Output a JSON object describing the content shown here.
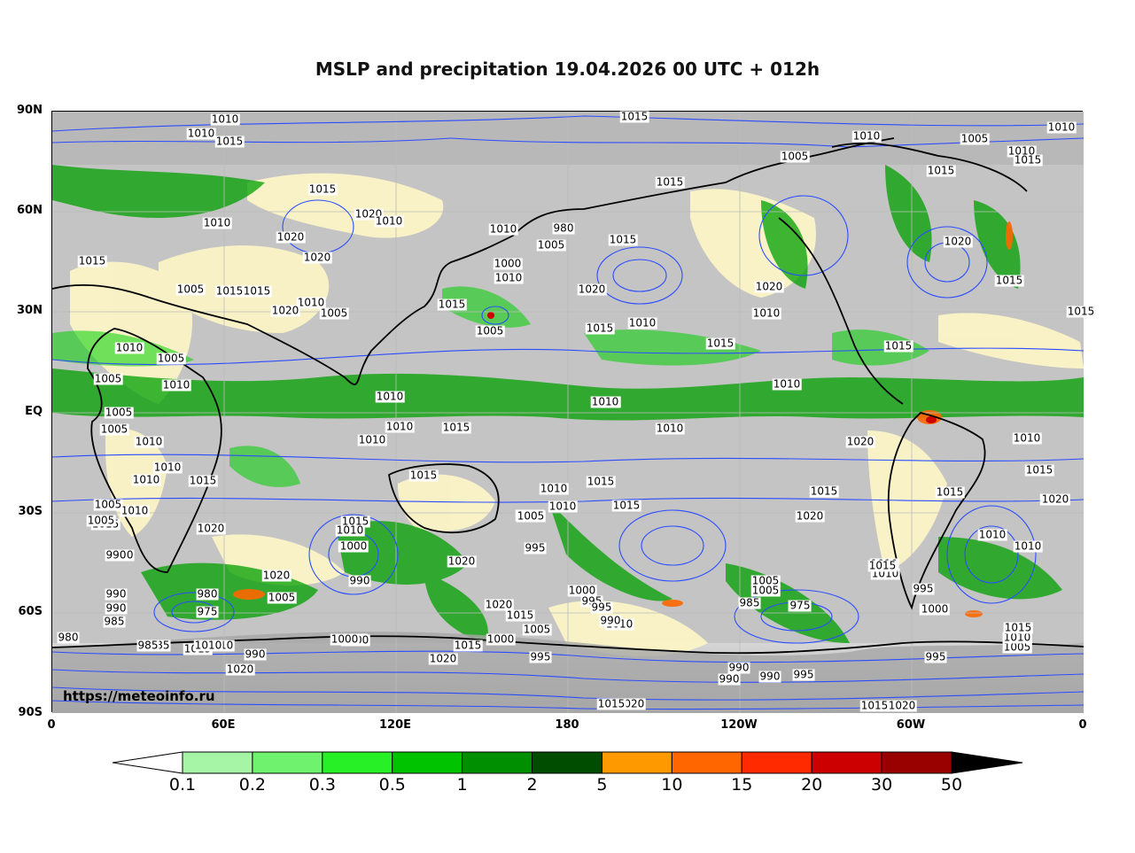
{
  "title": "MSLP and precipitation 19.04.2026 00 UTC + 012h",
  "credit": "https://meteoinfo.ru",
  "lat_labels": [
    "90N",
    "60N",
    "30N",
    "EQ",
    "30S",
    "60S",
    "90S"
  ],
  "lon_labels": [
    "0",
    "60E",
    "120E",
    "180",
    "120W",
    "60W",
    "0"
  ],
  "colorbar": {
    "labels": [
      "0.1",
      "0.2",
      "0.3",
      "0.5",
      "1",
      "2",
      "5",
      "10",
      "15",
      "20",
      "30",
      "50"
    ],
    "colors": [
      "#a6f5a6",
      "#6ff36f",
      "#27f027",
      "#00c300",
      "#008f00",
      "#004d00",
      "#ff9900",
      "#ff6600",
      "#ff2a00",
      "#cc0000",
      "#990000"
    ],
    "under_color": "#ffffff",
    "over_color": "#000000"
  },
  "isobar_labels": [
    "1010",
    "1010",
    "1015",
    "1015",
    "1010",
    "1015",
    "1010",
    "1005",
    "1010",
    "1015",
    "1005",
    "1020",
    "1015",
    "1015",
    "1015",
    "1015",
    "1010",
    "1020",
    "1010",
    "1020",
    "1005",
    "1010",
    "980",
    "1005",
    "1000",
    "1015",
    "1010",
    "1020",
    "1015",
    "1005",
    "1015",
    "1010",
    "1020",
    "1010",
    "1005",
    "1015",
    "1015",
    "1010",
    "1010",
    "1005",
    "1010",
    "1005",
    "1010",
    "1015",
    "1005",
    "1010",
    "1020",
    "1015",
    "1020",
    "1010",
    "1005",
    "1015",
    "1010",
    "1005",
    "1000",
    "1010",
    "1010",
    "1010",
    "1010",
    "1015",
    "1010",
    "1010",
    "1015",
    "1015",
    "1020",
    "1020",
    "1015",
    "1020",
    "1010",
    "1005",
    "995",
    "1000",
    "1020",
    "1015",
    "1010",
    "1015",
    "1015",
    "990",
    "1005",
    "980",
    "1020",
    "975",
    "1020",
    "990",
    "985",
    "1000",
    "1010",
    "1000",
    "990",
    "1015",
    "990",
    "995",
    "990",
    "990",
    "985",
    "975",
    "1000",
    "1015",
    "1020",
    "1015",
    "1010",
    "1005",
    "990",
    "995",
    "1000",
    "1015",
    "995",
    "1020",
    "1010",
    "1005",
    "1010",
    "985",
    "975",
    "980",
    "1020",
    "1015",
    "1010",
    "1015",
    "1020",
    "990",
    "995",
    "990",
    "1005",
    "995",
    "985",
    "1010",
    "1000",
    "1015",
    "1010",
    "1005",
    "1015",
    "1005",
    "1010",
    "1005",
    "990",
    "1020",
    "1010",
    "1010",
    "1015",
    "1015",
    "1010",
    "1020",
    "995",
    "1000",
    "1005",
    "1010",
    "1000",
    "1015",
    "1020",
    "1015"
  ]
}
